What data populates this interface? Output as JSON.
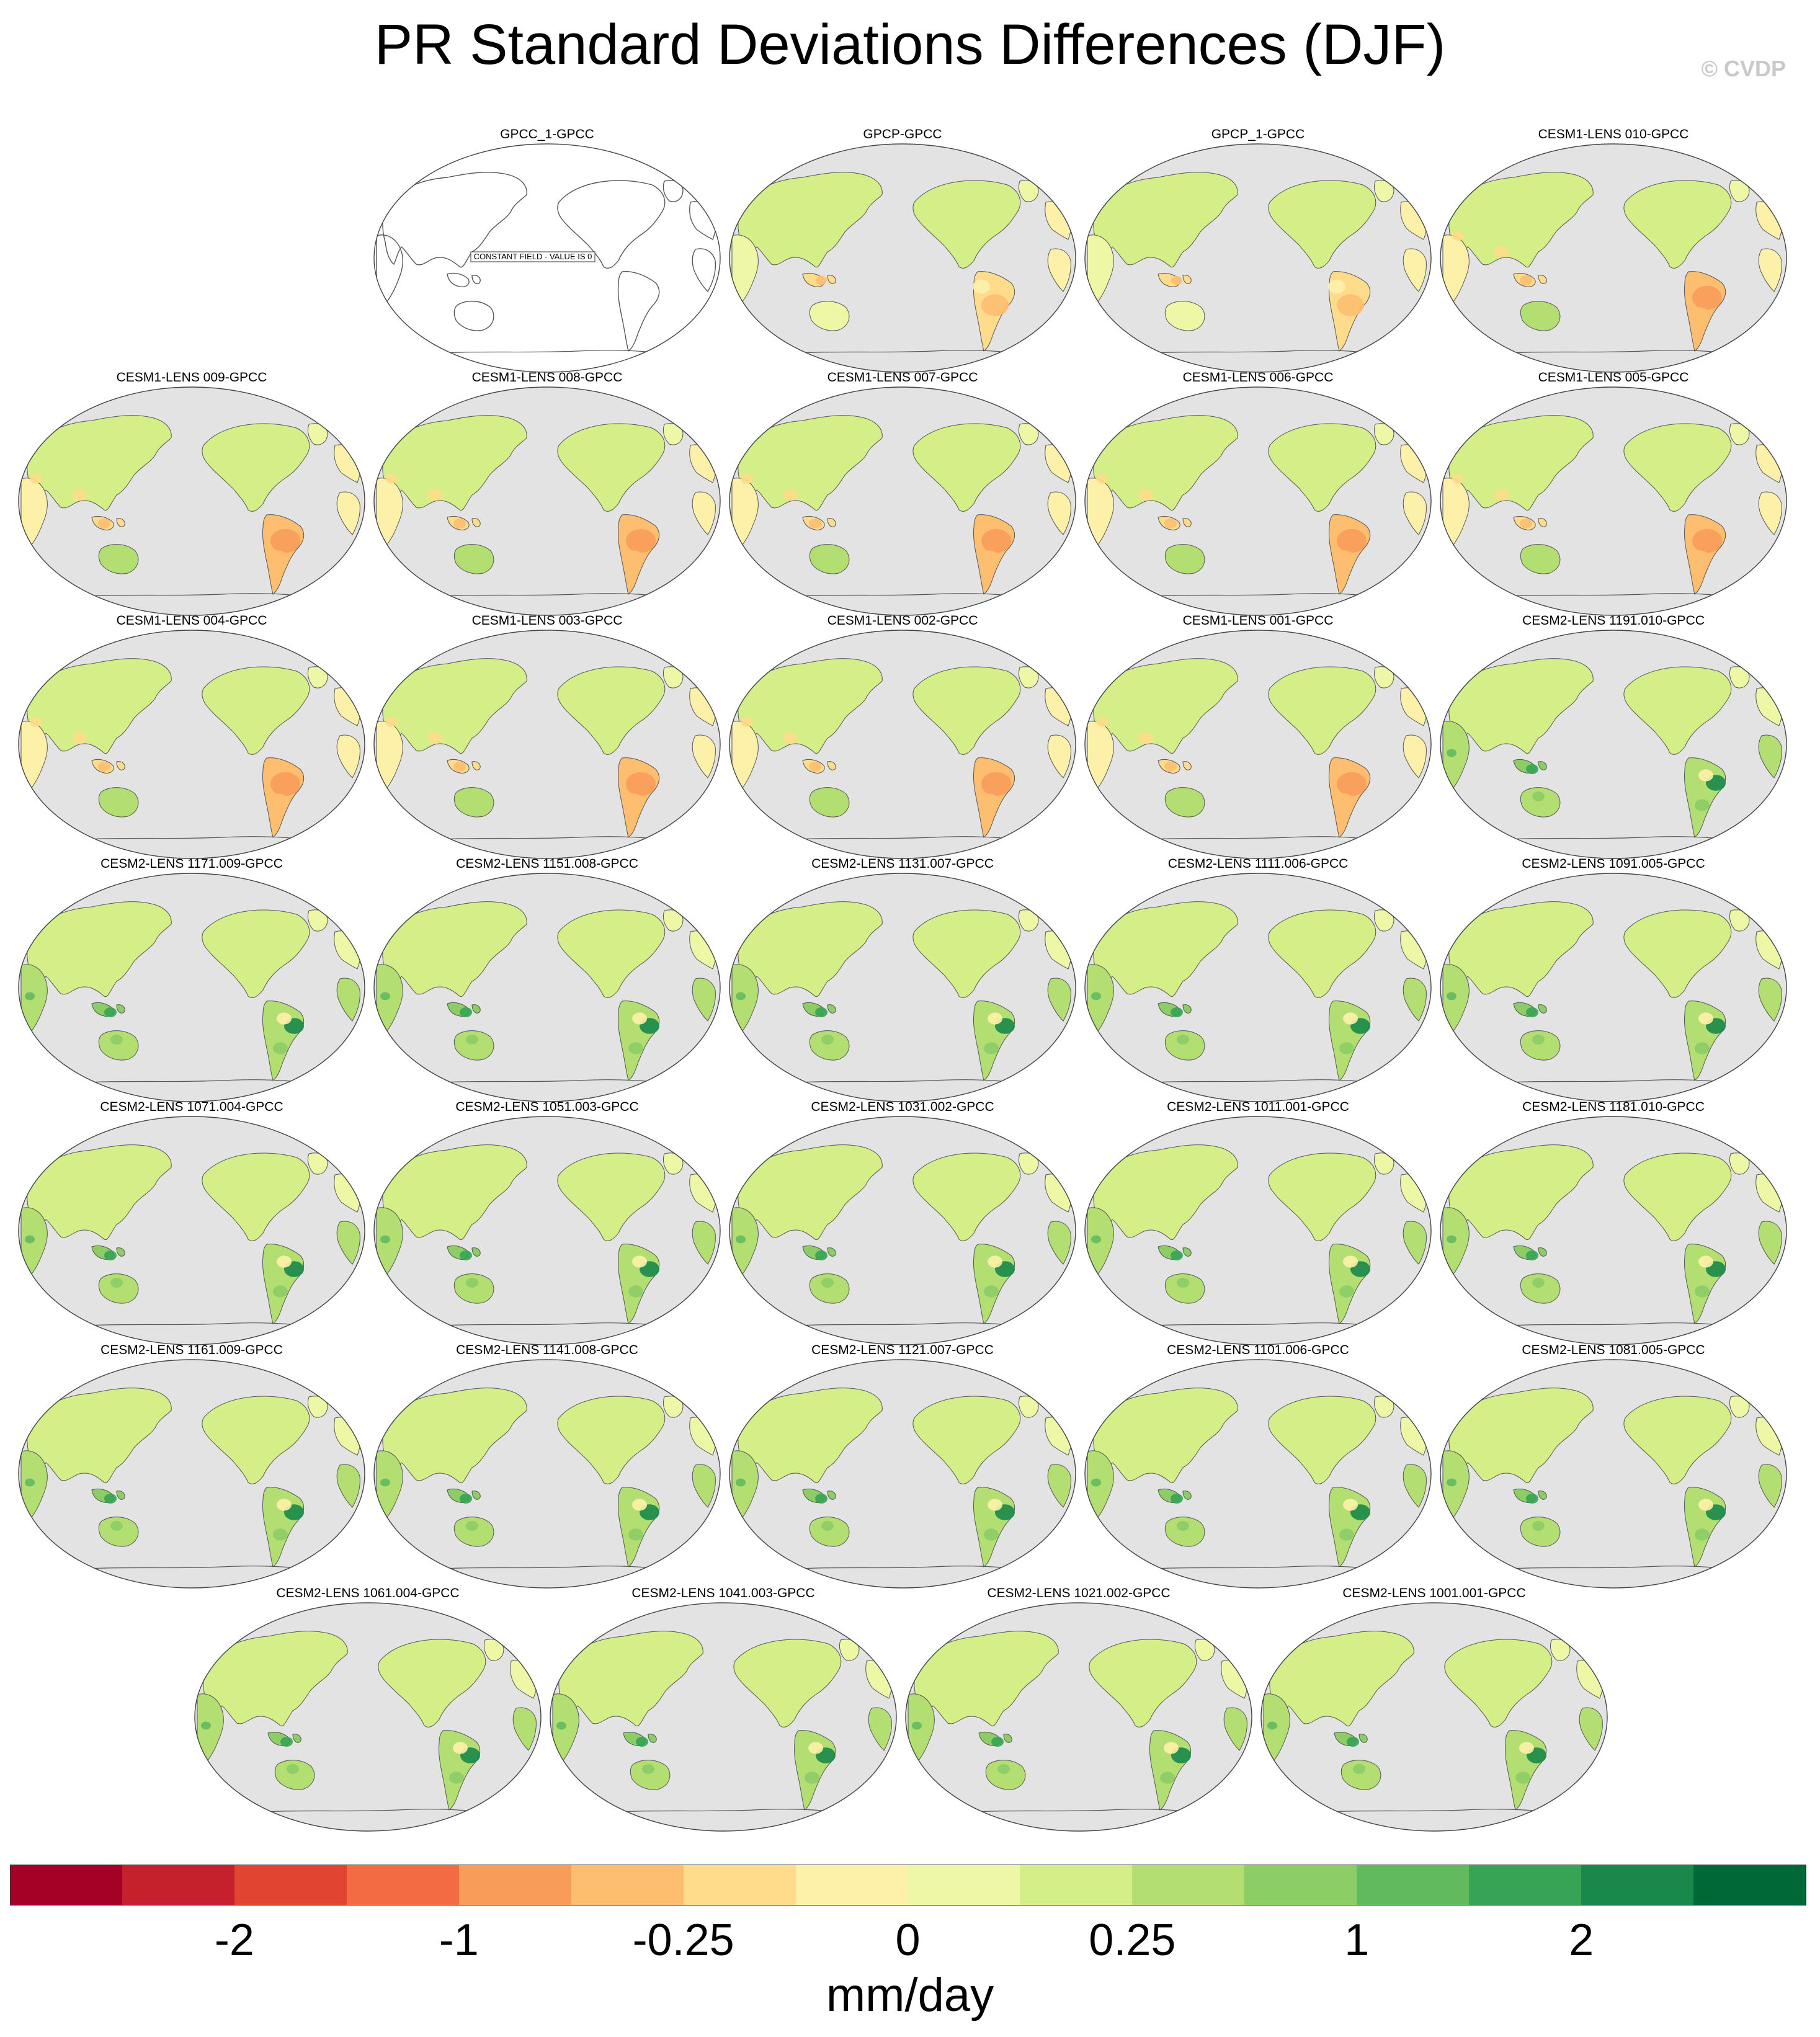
{
  "title": "PR Standard Deviations Differences (DJF)",
  "watermark": "© CVDP",
  "units": "mm/day",
  "colorbar": {
    "colors": [
      "#a50026",
      "#c5202b",
      "#e14430",
      "#f26b43",
      "#f89c5a",
      "#fdbe70",
      "#fedc8b",
      "#fdf1aa",
      "#edf7a6",
      "#d4ee88",
      "#b2de72",
      "#8ccd66",
      "#62ba5f",
      "#36a454",
      "#19884a",
      "#006837"
    ],
    "tick_labels": [
      "-2",
      "-1",
      "-0.25",
      "0",
      "0.25",
      "1",
      "2"
    ],
    "tick_boundaries": [
      2,
      4,
      6,
      8,
      10,
      12,
      14
    ]
  },
  "constant_field_label": "CONSTANT FIELD - VALUE IS 0",
  "palette": {
    "ocean": "#e3e3e3",
    "outline": "#444444",
    "coast": "#555555"
  },
  "panels": [
    {
      "title": "GPCC_1-GPCC",
      "pattern": "blank"
    },
    {
      "title": "GPCP-GPCC",
      "pattern": "gpcp"
    },
    {
      "title": "GPCP_1-GPCC",
      "pattern": "gpcp"
    },
    {
      "title": "CESM1-LENS 010-GPCC",
      "pattern": "cesm1"
    },
    {
      "title": "CESM1-LENS 009-GPCC",
      "pattern": "cesm1"
    },
    {
      "title": "CESM1-LENS 008-GPCC",
      "pattern": "cesm1"
    },
    {
      "title": "CESM1-LENS 007-GPCC",
      "pattern": "cesm1"
    },
    {
      "title": "CESM1-LENS 006-GPCC",
      "pattern": "cesm1"
    },
    {
      "title": "CESM1-LENS 005-GPCC",
      "pattern": "cesm1"
    },
    {
      "title": "CESM1-LENS 004-GPCC",
      "pattern": "cesm1"
    },
    {
      "title": "CESM1-LENS 003-GPCC",
      "pattern": "cesm1"
    },
    {
      "title": "CESM1-LENS 002-GPCC",
      "pattern": "cesm1"
    },
    {
      "title": "CESM1-LENS 001-GPCC",
      "pattern": "cesm1"
    },
    {
      "title": "CESM2-LENS 1191.010-GPCC",
      "pattern": "cesm2"
    },
    {
      "title": "CESM2-LENS 1171.009-GPCC",
      "pattern": "cesm2"
    },
    {
      "title": "CESM2-LENS 1151.008-GPCC",
      "pattern": "cesm2"
    },
    {
      "title": "CESM2-LENS 1131.007-GPCC",
      "pattern": "cesm2"
    },
    {
      "title": "CESM2-LENS 1111.006-GPCC",
      "pattern": "cesm2"
    },
    {
      "title": "CESM2-LENS 1091.005-GPCC",
      "pattern": "cesm2"
    },
    {
      "title": "CESM2-LENS 1071.004-GPCC",
      "pattern": "cesm2"
    },
    {
      "title": "CESM2-LENS 1051.003-GPCC",
      "pattern": "cesm2"
    },
    {
      "title": "CESM2-LENS 1031.002-GPCC",
      "pattern": "cesm2"
    },
    {
      "title": "CESM2-LENS 1011.001-GPCC",
      "pattern": "cesm2"
    },
    {
      "title": "CESM2-LENS 1181.010-GPCC",
      "pattern": "cesm2"
    },
    {
      "title": "CESM2-LENS 1161.009-GPCC",
      "pattern": "cesm2"
    },
    {
      "title": "CESM2-LENS 1141.008-GPCC",
      "pattern": "cesm2"
    },
    {
      "title": "CESM2-LENS 1121.007-GPCC",
      "pattern": "cesm2"
    },
    {
      "title": "CESM2-LENS 1101.006-GPCC",
      "pattern": "cesm2"
    },
    {
      "title": "CESM2-LENS 1081.005-GPCC",
      "pattern": "cesm2"
    },
    {
      "title": "CESM2-LENS 1061.004-GPCC",
      "pattern": "cesm2"
    },
    {
      "title": "CESM2-LENS 1041.003-GPCC",
      "pattern": "cesm2"
    },
    {
      "title": "CESM2-LENS 1021.002-GPCC",
      "pattern": "cesm2"
    },
    {
      "title": "CESM2-LENS 1001.001-GPCC",
      "pattern": "cesm2"
    }
  ]
}
